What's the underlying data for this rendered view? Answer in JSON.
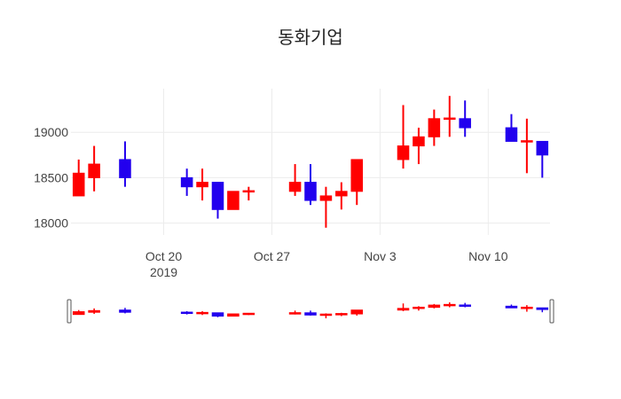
{
  "chart_data": {
    "type": "candlestick",
    "title": "동화기업",
    "xlabel": "",
    "ylabel": "",
    "grid": true,
    "legend": "none",
    "colors": {
      "increasing": "#ff0000",
      "decreasing": "#2200ee"
    },
    "x_ticks": [
      {
        "date": "2019-10-20",
        "label": "Oct 20",
        "sublabel": "2019"
      },
      {
        "date": "2019-10-27",
        "label": "Oct 27",
        "sublabel": ""
      },
      {
        "date": "2019-11-03",
        "label": "Nov 3",
        "sublabel": ""
      },
      {
        "date": "2019-11-10",
        "label": "Nov 10",
        "sublabel": ""
      }
    ],
    "y_ticks": [
      18000,
      18500,
      19000
    ],
    "xlim": [
      "2019-10-14",
      "2019-11-14"
    ],
    "ylim": [
      17870,
      19480
    ],
    "rangeslider": true,
    "candles": [
      {
        "date": "2019-10-14",
        "open": 18300,
        "high": 18700,
        "low": 18300,
        "close": 18550
      },
      {
        "date": "2019-10-15",
        "open": 18500,
        "high": 18850,
        "low": 18350,
        "close": 18650
      },
      {
        "date": "2019-10-17",
        "open": 18700,
        "high": 18900,
        "low": 18400,
        "close": 18500
      },
      {
        "date": "2019-10-21",
        "open": 18500,
        "high": 18600,
        "low": 18300,
        "close": 18400
      },
      {
        "date": "2019-10-22",
        "open": 18400,
        "high": 18600,
        "low": 18250,
        "close": 18450
      },
      {
        "date": "2019-10-23",
        "open": 18450,
        "high": 18450,
        "low": 18050,
        "close": 18150
      },
      {
        "date": "2019-10-24",
        "open": 18150,
        "high": 18350,
        "low": 18150,
        "close": 18350
      },
      {
        "date": "2019-10-25",
        "open": 18350,
        "high": 18400,
        "low": 18250,
        "close": 18350
      },
      {
        "date": "2019-10-28",
        "open": 18350,
        "high": 18650,
        "low": 18300,
        "close": 18450
      },
      {
        "date": "2019-10-29",
        "open": 18450,
        "high": 18650,
        "low": 18200,
        "close": 18250
      },
      {
        "date": "2019-10-30",
        "open": 18250,
        "high": 18400,
        "low": 17950,
        "close": 18300
      },
      {
        "date": "2019-10-31",
        "open": 18300,
        "high": 18450,
        "low": 18150,
        "close": 18350
      },
      {
        "date": "2019-11-01",
        "open": 18350,
        "high": 18700,
        "low": 18200,
        "close": 18700
      },
      {
        "date": "2019-11-04",
        "open": 18700,
        "high": 19300,
        "low": 18600,
        "close": 18850
      },
      {
        "date": "2019-11-05",
        "open": 18850,
        "high": 19050,
        "low": 18650,
        "close": 18950
      },
      {
        "date": "2019-11-06",
        "open": 18950,
        "high": 19250,
        "low": 18850,
        "close": 19150
      },
      {
        "date": "2019-11-07",
        "open": 19150,
        "high": 19400,
        "low": 18950,
        "close": 19150
      },
      {
        "date": "2019-11-08",
        "open": 19150,
        "high": 19350,
        "low": 18950,
        "close": 19050
      },
      {
        "date": "2019-11-11",
        "open": 19050,
        "high": 19200,
        "low": 18900,
        "close": 18900
      },
      {
        "date": "2019-11-12",
        "open": 18900,
        "high": 19150,
        "low": 18550,
        "close": 18900
      },
      {
        "date": "2019-11-13",
        "open": 18900,
        "high": 18900,
        "low": 18500,
        "close": 18750
      }
    ]
  }
}
